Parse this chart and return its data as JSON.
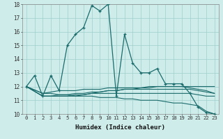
{
  "xlabel": "Humidex (Indice chaleur)",
  "bg_color": "#ceecea",
  "grid_color": "#a0cfcc",
  "line_color": "#1a6b6b",
  "xlim": [
    -0.5,
    23.5
  ],
  "ylim": [
    10,
    18
  ],
  "yticks": [
    10,
    11,
    12,
    13,
    14,
    15,
    16,
    17,
    18
  ],
  "xticks": [
    0,
    1,
    2,
    3,
    4,
    5,
    6,
    7,
    8,
    9,
    10,
    11,
    12,
    13,
    14,
    15,
    16,
    17,
    18,
    19,
    20,
    21,
    22,
    23
  ],
  "series": [
    {
      "x": [
        0,
        1,
        2,
        3,
        4,
        5,
        6,
        7,
        8,
        9,
        10,
        11,
        12,
        13,
        14,
        15,
        16,
        17,
        18,
        19,
        20,
        21,
        22,
        23
      ],
      "y": [
        12.0,
        12.8,
        11.3,
        12.8,
        11.7,
        15.0,
        15.8,
        16.3,
        17.9,
        17.5,
        18.0,
        11.3,
        15.8,
        13.7,
        13.0,
        13.0,
        13.3,
        12.2,
        12.2,
        12.2,
        11.5,
        10.5,
        10.1,
        10.0
      ],
      "marker": true
    },
    {
      "x": [
        0,
        2,
        3,
        4,
        5,
        6,
        7,
        8,
        9,
        10,
        11,
        12,
        13,
        14,
        15,
        16,
        17,
        18,
        19,
        20,
        21,
        22,
        23
      ],
      "y": [
        12.0,
        11.3,
        11.3,
        11.4,
        11.4,
        11.5,
        11.5,
        11.6,
        11.6,
        11.7,
        11.7,
        11.8,
        11.8,
        11.8,
        11.8,
        11.8,
        11.8,
        11.8,
        11.8,
        11.8,
        11.7,
        11.6,
        11.5
      ],
      "marker": false
    },
    {
      "x": [
        0,
        2,
        3,
        4,
        5,
        6,
        7,
        8,
        9,
        10,
        11,
        12,
        13,
        14,
        15,
        16,
        17,
        18,
        19,
        20,
        21,
        22,
        23
      ],
      "y": [
        12.0,
        11.3,
        11.3,
        11.3,
        11.3,
        11.4,
        11.4,
        11.5,
        11.6,
        11.7,
        11.7,
        11.8,
        11.8,
        11.9,
        11.9,
        12.0,
        12.0,
        12.0,
        12.0,
        12.0,
        12.0,
        12.0,
        12.0
      ],
      "marker": false
    },
    {
      "x": [
        0,
        2,
        3,
        4,
        5,
        6,
        7,
        8,
        9,
        10,
        11,
        12,
        13,
        14,
        15,
        16,
        17,
        18,
        19,
        20,
        21,
        22,
        23
      ],
      "y": [
        12.0,
        11.3,
        11.3,
        11.3,
        11.3,
        11.3,
        11.4,
        11.5,
        11.5,
        11.5,
        11.5,
        11.5,
        11.5,
        11.5,
        11.5,
        11.5,
        11.5,
        11.5,
        11.5,
        11.5,
        11.4,
        11.3,
        11.3
      ],
      "marker": false
    },
    {
      "x": [
        0,
        2,
        3,
        4,
        5,
        6,
        7,
        8,
        9,
        10,
        11,
        12,
        13,
        14,
        15,
        16,
        17,
        18,
        19,
        20,
        21,
        22,
        23
      ],
      "y": [
        12.0,
        11.5,
        11.6,
        11.7,
        11.7,
        11.7,
        11.8,
        11.8,
        11.8,
        11.9,
        11.9,
        11.9,
        11.9,
        11.9,
        12.0,
        12.0,
        12.0,
        12.0,
        12.0,
        11.9,
        11.8,
        11.7,
        11.5
      ],
      "marker": false
    },
    {
      "x": [
        0,
        2,
        3,
        4,
        5,
        6,
        7,
        8,
        9,
        10,
        11,
        12,
        13,
        14,
        15,
        16,
        17,
        18,
        19,
        20,
        21,
        22,
        23
      ],
      "y": [
        12.0,
        11.5,
        11.5,
        11.4,
        11.4,
        11.3,
        11.3,
        11.3,
        11.2,
        11.2,
        11.2,
        11.1,
        11.1,
        11.0,
        11.0,
        11.0,
        10.9,
        10.8,
        10.8,
        10.7,
        10.6,
        10.2,
        10.0
      ],
      "marker": false
    }
  ]
}
